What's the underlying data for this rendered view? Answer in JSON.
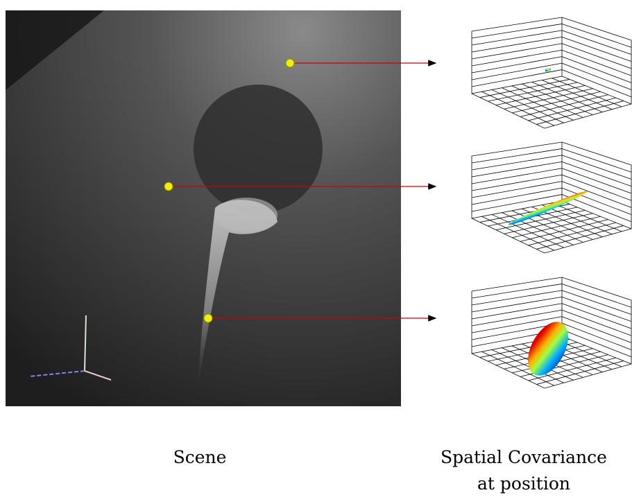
{
  "figure": {
    "scene_label": "Scene",
    "covariance_label": [
      "Spatial Covariance",
      "at position"
    ]
  }
}
